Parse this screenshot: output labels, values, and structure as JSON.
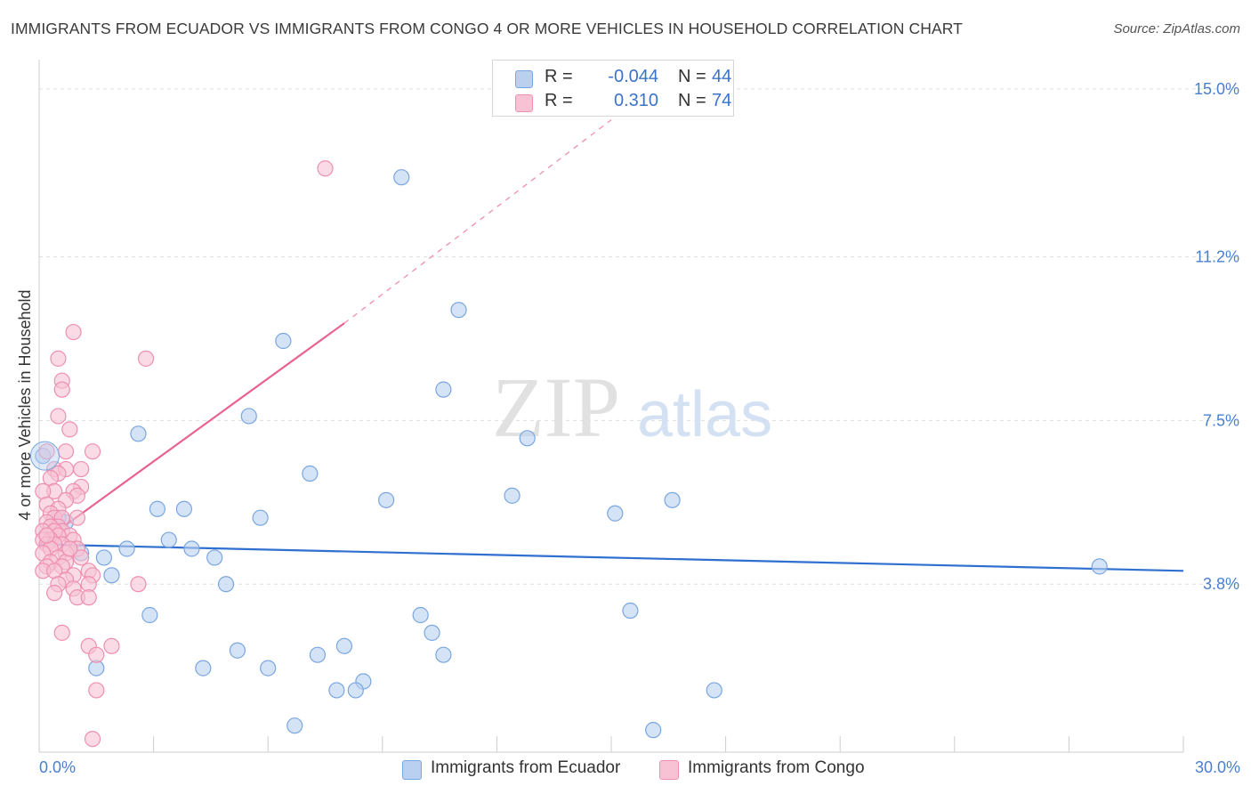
{
  "title": "IMMIGRANTS FROM ECUADOR VS IMMIGRANTS FROM CONGO 4 OR MORE VEHICLES IN HOUSEHOLD CORRELATION CHART",
  "source": "Source: ZipAtlas.com",
  "watermark": {
    "zip": "ZIP",
    "atlas": "atlas"
  },
  "colors": {
    "ecuador_fill": "#b9d0f0",
    "ecuador_stroke": "#7aa6e0",
    "ecuador_line": "#2f6fd0",
    "congo_fill": "#f7c3d4",
    "congo_stroke": "#ee8fb0",
    "congo_line": "#e8628f",
    "tick_text": "#4a7fd0",
    "grid": "#dddddd"
  },
  "legend": {
    "rows": [
      {
        "series": "ecuador",
        "r_label": "R =",
        "r_value": "-0.044",
        "n_label": "N =",
        "n_value": "44"
      },
      {
        "series": "congo",
        "r_label": "R =",
        "r_value": "0.310",
        "n_label": "N =",
        "n_value": "74"
      }
    ]
  },
  "bottom_legend": [
    {
      "series": "ecuador",
      "label": "Immigrants from Ecuador"
    },
    {
      "series": "congo",
      "label": "Immigrants from Congo"
    }
  ],
  "chart_data": {
    "type": "scatter",
    "ylabel": "4 or more Vehicles in Household",
    "xlabel": "",
    "xlim": [
      0,
      30
    ],
    "ylim": [
      0,
      15.5
    ],
    "x_tick_labels": [
      "0.0%",
      "30.0%"
    ],
    "y_ticks": [
      3.8,
      7.5,
      11.2,
      15.0
    ],
    "y_tick_labels": [
      "3.8%",
      "7.5%",
      "11.2%",
      "15.0%"
    ],
    "grid": true,
    "legend_position": "top-center",
    "series": [
      {
        "name": "Immigrants from Ecuador",
        "color": "#7aa6e0",
        "points": [
          [
            9.5,
            13.0
          ],
          [
            11.0,
            10.0
          ],
          [
            6.4,
            9.3
          ],
          [
            10.6,
            8.2
          ],
          [
            5.5,
            7.6
          ],
          [
            2.6,
            7.2
          ],
          [
            12.8,
            7.1
          ],
          [
            0.1,
            6.7
          ],
          [
            7.1,
            6.3
          ],
          [
            12.4,
            5.8
          ],
          [
            9.1,
            5.7
          ],
          [
            16.6,
            5.7
          ],
          [
            3.1,
            5.5
          ],
          [
            3.8,
            5.5
          ],
          [
            15.1,
            5.4
          ],
          [
            5.8,
            5.3
          ],
          [
            0.7,
            5.2
          ],
          [
            0.5,
            5.3
          ],
          [
            3.4,
            4.8
          ],
          [
            2.3,
            4.6
          ],
          [
            4.0,
            4.6
          ],
          [
            1.1,
            4.5
          ],
          [
            4.6,
            4.4
          ],
          [
            1.7,
            4.4
          ],
          [
            27.8,
            4.2
          ],
          [
            1.9,
            4.0
          ],
          [
            4.9,
            3.8
          ],
          [
            2.9,
            3.1
          ],
          [
            10.0,
            3.1
          ],
          [
            15.5,
            3.2
          ],
          [
            10.3,
            2.7
          ],
          [
            8.0,
            2.4
          ],
          [
            5.2,
            2.3
          ],
          [
            7.3,
            2.2
          ],
          [
            10.6,
            2.2
          ],
          [
            1.5,
            1.9
          ],
          [
            4.3,
            1.9
          ],
          [
            6.0,
            1.9
          ],
          [
            8.5,
            1.6
          ],
          [
            8.3,
            1.4
          ],
          [
            17.7,
            1.4
          ],
          [
            7.8,
            1.4
          ],
          [
            6.7,
            0.6
          ],
          [
            16.1,
            0.5
          ]
        ]
      },
      {
        "name": "Immigrants from Congo",
        "color": "#ee8fb0",
        "points": [
          [
            7.5,
            13.2
          ],
          [
            0.9,
            9.5
          ],
          [
            2.8,
            8.9
          ],
          [
            0.5,
            8.9
          ],
          [
            0.6,
            8.4
          ],
          [
            0.6,
            8.2
          ],
          [
            0.5,
            7.6
          ],
          [
            0.8,
            7.3
          ],
          [
            1.4,
            6.8
          ],
          [
            0.7,
            6.8
          ],
          [
            0.2,
            6.8
          ],
          [
            0.4,
            6.4
          ],
          [
            0.7,
            6.4
          ],
          [
            0.5,
            6.3
          ],
          [
            1.1,
            6.4
          ],
          [
            0.3,
            6.2
          ],
          [
            1.1,
            6.0
          ],
          [
            0.4,
            5.9
          ],
          [
            0.9,
            5.9
          ],
          [
            0.1,
            5.9
          ],
          [
            1.0,
            5.8
          ],
          [
            0.7,
            5.7
          ],
          [
            0.2,
            5.6
          ],
          [
            0.5,
            5.5
          ],
          [
            0.3,
            5.4
          ],
          [
            1.0,
            5.3
          ],
          [
            0.4,
            5.3
          ],
          [
            0.6,
            5.3
          ],
          [
            0.2,
            5.2
          ],
          [
            0.5,
            5.1
          ],
          [
            0.3,
            5.1
          ],
          [
            0.6,
            5.0
          ],
          [
            0.1,
            5.0
          ],
          [
            0.4,
            5.0
          ],
          [
            0.2,
            4.9
          ],
          [
            0.8,
            4.9
          ],
          [
            0.5,
            4.9
          ],
          [
            0.3,
            4.8
          ],
          [
            0.1,
            4.8
          ],
          [
            0.9,
            4.8
          ],
          [
            0.6,
            4.7
          ],
          [
            0.2,
            4.7
          ],
          [
            0.4,
            4.7
          ],
          [
            1.0,
            4.6
          ],
          [
            0.3,
            4.6
          ],
          [
            0.7,
            4.5
          ],
          [
            0.1,
            4.5
          ],
          [
            1.1,
            4.4
          ],
          [
            0.5,
            4.4
          ],
          [
            0.3,
            4.3
          ],
          [
            0.7,
            4.3
          ],
          [
            0.2,
            4.2
          ],
          [
            0.6,
            4.2
          ],
          [
            0.1,
            4.1
          ],
          [
            1.3,
            4.1
          ],
          [
            0.4,
            4.1
          ],
          [
            0.9,
            4.0
          ],
          [
            1.4,
            4.0
          ],
          [
            0.7,
            3.9
          ],
          [
            2.6,
            3.8
          ],
          [
            0.5,
            3.8
          ],
          [
            1.3,
            3.8
          ],
          [
            0.9,
            3.7
          ],
          [
            0.4,
            3.6
          ],
          [
            1.0,
            3.5
          ],
          [
            1.3,
            3.5
          ],
          [
            0.6,
            2.7
          ],
          [
            1.3,
            2.4
          ],
          [
            1.9,
            2.4
          ],
          [
            1.5,
            2.2
          ],
          [
            1.5,
            1.4
          ],
          [
            1.4,
            0.3
          ],
          [
            0.2,
            4.9
          ],
          [
            0.8,
            4.6
          ]
        ]
      }
    ],
    "trend_lines": [
      {
        "series": "Immigrants from Ecuador",
        "x": [
          0,
          30
        ],
        "y": [
          4.7,
          4.1
        ],
        "style": "solid"
      },
      {
        "series": "Immigrants from Congo",
        "x": [
          0,
          8
        ],
        "y": [
          4.7,
          9.7
        ],
        "style": "solid",
        "extended_x": [
          8,
          15
        ],
        "extended_y": [
          9.7,
          14.3
        ],
        "extended_style": "dashed"
      }
    ]
  }
}
